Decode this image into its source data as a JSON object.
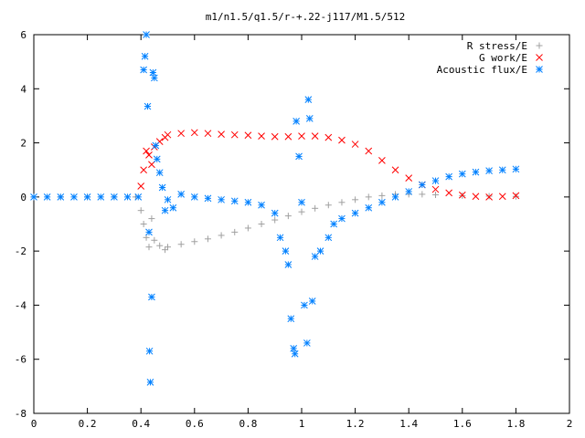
{
  "chart_data": {
    "type": "scatter",
    "title": "m1/n1.5/q1.5/r-+.22-j117/M1.5/512",
    "xlabel": "",
    "ylabel": "",
    "xlim": [
      0,
      2
    ],
    "ylim": [
      -8,
      6
    ],
    "x_ticks": [
      "0",
      "0.2",
      "0.4",
      "0.6",
      "0.8",
      "1",
      "1.2",
      "1.4",
      "1.6",
      "1.8",
      "2"
    ],
    "y_ticks": [
      "6",
      "4",
      "2",
      "0",
      "-2",
      "-4",
      "-6",
      "-8"
    ],
    "legend_position": "top-right",
    "grid": false,
    "series": [
      {
        "name": "R stress/E",
        "marker": "plus",
        "color": "#a0a0a0",
        "points": [
          [
            0.0,
            0.0
          ],
          [
            0.1,
            0.0
          ],
          [
            0.2,
            0.0
          ],
          [
            0.3,
            0.0
          ],
          [
            0.38,
            0.0
          ],
          [
            0.4,
            -0.5
          ],
          [
            0.41,
            -1.0
          ],
          [
            0.42,
            -1.5
          ],
          [
            0.43,
            -1.85
          ],
          [
            0.44,
            -0.8
          ],
          [
            0.45,
            -1.6
          ],
          [
            0.47,
            -1.8
          ],
          [
            0.49,
            -1.95
          ],
          [
            0.5,
            -1.85
          ],
          [
            0.55,
            -1.75
          ],
          [
            0.6,
            -1.65
          ],
          [
            0.65,
            -1.55
          ],
          [
            0.7,
            -1.42
          ],
          [
            0.75,
            -1.3
          ],
          [
            0.8,
            -1.15
          ],
          [
            0.85,
            -1.0
          ],
          [
            0.9,
            -0.85
          ],
          [
            0.95,
            -0.7
          ],
          [
            1.0,
            -0.55
          ],
          [
            1.05,
            -0.42
          ],
          [
            1.1,
            -0.3
          ],
          [
            1.15,
            -0.2
          ],
          [
            1.2,
            -0.1
          ],
          [
            1.25,
            0.0
          ],
          [
            1.3,
            0.05
          ],
          [
            1.35,
            0.1
          ],
          [
            1.4,
            0.1
          ],
          [
            1.45,
            0.1
          ],
          [
            1.5,
            0.08
          ],
          [
            1.6,
            0.05
          ],
          [
            1.7,
            0.03
          ],
          [
            1.8,
            0.02
          ]
        ]
      },
      {
        "name": "G work/E",
        "marker": "cross",
        "color": "#ff0000",
        "points": [
          [
            0.4,
            0.4
          ],
          [
            0.41,
            1.0
          ],
          [
            0.42,
            1.7
          ],
          [
            0.43,
            1.55
          ],
          [
            0.44,
            1.2
          ],
          [
            0.45,
            1.85
          ],
          [
            0.47,
            2.05
          ],
          [
            0.49,
            2.2
          ],
          [
            0.5,
            2.3
          ],
          [
            0.55,
            2.35
          ],
          [
            0.6,
            2.38
          ],
          [
            0.65,
            2.35
          ],
          [
            0.7,
            2.32
          ],
          [
            0.75,
            2.3
          ],
          [
            0.8,
            2.28
          ],
          [
            0.85,
            2.25
          ],
          [
            0.9,
            2.23
          ],
          [
            0.95,
            2.23
          ],
          [
            1.0,
            2.25
          ],
          [
            1.05,
            2.25
          ],
          [
            1.1,
            2.2
          ],
          [
            1.15,
            2.1
          ],
          [
            1.2,
            1.95
          ],
          [
            1.25,
            1.7
          ],
          [
            1.3,
            1.35
          ],
          [
            1.35,
            1.0
          ],
          [
            1.4,
            0.7
          ],
          [
            1.45,
            0.45
          ],
          [
            1.5,
            0.28
          ],
          [
            1.55,
            0.15
          ],
          [
            1.6,
            0.07
          ],
          [
            1.65,
            0.02
          ],
          [
            1.7,
            0.0
          ],
          [
            1.75,
            0.02
          ],
          [
            1.8,
            0.05
          ]
        ]
      },
      {
        "name": "Acoustic flux/E",
        "marker": "star",
        "color": "#0080ff",
        "points": [
          [
            0.0,
            0.0
          ],
          [
            0.05,
            0.0
          ],
          [
            0.1,
            0.0
          ],
          [
            0.15,
            0.0
          ],
          [
            0.2,
            0.0
          ],
          [
            0.25,
            0.0
          ],
          [
            0.3,
            0.0
          ],
          [
            0.35,
            0.0
          ],
          [
            0.39,
            0.0
          ],
          [
            0.41,
            4.7
          ],
          [
            0.415,
            5.2
          ],
          [
            0.42,
            6.0
          ],
          [
            0.425,
            3.35
          ],
          [
            0.43,
            -1.3
          ],
          [
            0.432,
            -5.7
          ],
          [
            0.435,
            -6.85
          ],
          [
            0.44,
            -3.7
          ],
          [
            0.445,
            4.6
          ],
          [
            0.45,
            4.4
          ],
          [
            0.455,
            1.9
          ],
          [
            0.46,
            1.4
          ],
          [
            0.47,
            0.9
          ],
          [
            0.48,
            0.35
          ],
          [
            0.49,
            -0.5
          ],
          [
            0.5,
            -0.1
          ],
          [
            0.52,
            -0.4
          ],
          [
            0.55,
            0.1
          ],
          [
            0.6,
            0.0
          ],
          [
            0.65,
            -0.05
          ],
          [
            0.7,
            -0.1
          ],
          [
            0.75,
            -0.15
          ],
          [
            0.8,
            -0.2
          ],
          [
            0.85,
            -0.3
          ],
          [
            0.9,
            -0.6
          ],
          [
            0.92,
            -1.5
          ],
          [
            0.94,
            -2.0
          ],
          [
            0.95,
            -2.5
          ],
          [
            0.96,
            -4.5
          ],
          [
            0.97,
            -5.6
          ],
          [
            0.975,
            -5.8
          ],
          [
            0.98,
            2.8
          ],
          [
            0.99,
            1.5
          ],
          [
            1.0,
            -0.2
          ],
          [
            1.01,
            -4.0
          ],
          [
            1.02,
            -5.4
          ],
          [
            1.025,
            3.6
          ],
          [
            1.03,
            2.9
          ],
          [
            1.04,
            -3.85
          ],
          [
            1.05,
            -2.2
          ],
          [
            1.07,
            -2.0
          ],
          [
            1.1,
            -1.5
          ],
          [
            1.12,
            -1.0
          ],
          [
            1.15,
            -0.8
          ],
          [
            1.2,
            -0.6
          ],
          [
            1.25,
            -0.4
          ],
          [
            1.3,
            -0.2
          ],
          [
            1.35,
            0.0
          ],
          [
            1.4,
            0.2
          ],
          [
            1.45,
            0.45
          ],
          [
            1.5,
            0.6
          ],
          [
            1.55,
            0.75
          ],
          [
            1.6,
            0.85
          ],
          [
            1.65,
            0.92
          ],
          [
            1.7,
            0.97
          ],
          [
            1.75,
            1.0
          ],
          [
            1.8,
            1.03
          ]
        ]
      }
    ]
  }
}
